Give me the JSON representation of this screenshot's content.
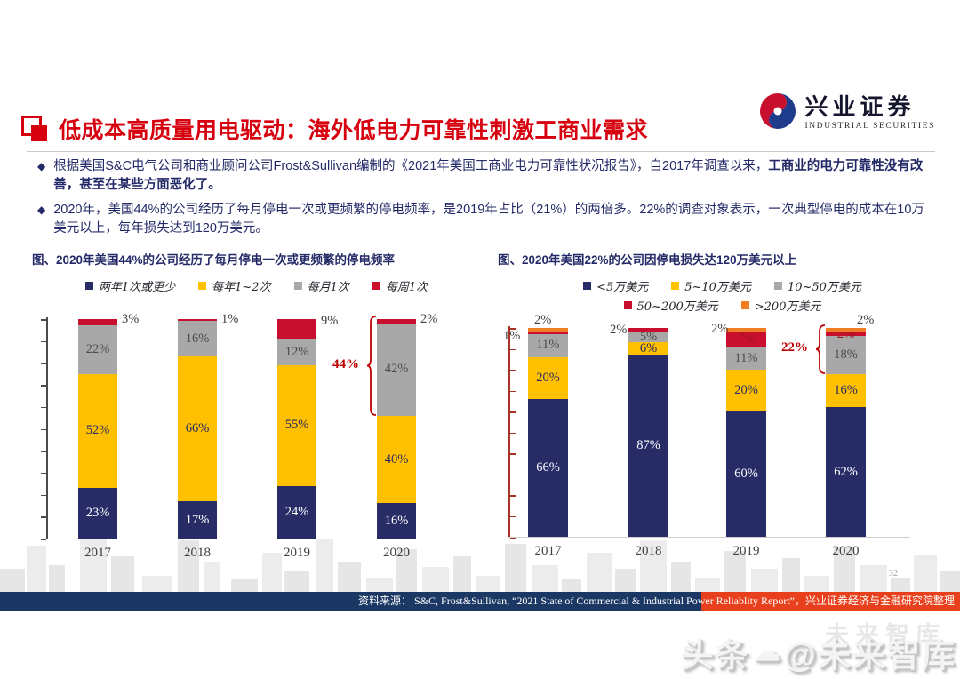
{
  "header": {
    "title": "低成本高质量用电驱动：海外低电力可靠性刺激工商业需求",
    "logo_cn": "兴业证券",
    "logo_en": "INDUSTRIAL SECURITIES"
  },
  "bullet_marker": "◆",
  "bullets": [
    {
      "pre": "根据美国S&C电气公司和商业顾问公司Frost&Sullivan编制的《2021年美国工商业电力可靠性状况报告》，自2017年调查以来，",
      "bold": "工商业的电力可靠性没有改善，甚至在某些方面恶化了。"
    },
    {
      "pre": "2020年，美国44%的公司经历了每月停电一次或更频繁的停电频率，是2019年占比（21%）的两倍多。22%的调查对象表示，一次典型停电的成本在10万美元以上，每年损失达到120万美元。",
      "bold": ""
    }
  ],
  "chart_data": [
    {
      "type": "bar",
      "subtype": "stacked",
      "title": "图、2020年美国44%的公司经历了每月停电一次或更频繁的停电频率",
      "categories": [
        "2017",
        "2018",
        "2019",
        "2020"
      ],
      "ylim": [
        0,
        100
      ],
      "unit": "%",
      "grid": false,
      "legend_position": "top",
      "legend_rows": [
        [
          0,
          1,
          2,
          3
        ]
      ],
      "series": [
        {
          "name": "两年1次或更少",
          "color": "#272C67",
          "label_color": "#FFFFFF",
          "values": [
            23,
            17,
            24,
            16
          ],
          "labels": [
            "23%",
            "17%",
            "24%",
            "16%"
          ]
        },
        {
          "name": "每年1~2次",
          "color": "#FFC000",
          "label_color": "#262A63",
          "values": [
            52,
            66,
            55,
            40
          ],
          "labels": [
            "52%",
            "66%",
            "55%",
            "40%"
          ]
        },
        {
          "name": "每月1次",
          "color": "#A8A8A8",
          "label_color": "#4D4D4D",
          "values": [
            22,
            16,
            12,
            42
          ],
          "labels": [
            "22%",
            "16%",
            "12%",
            "42%"
          ]
        },
        {
          "name": "每周1次",
          "color": "#C8102E",
          "label_color": "#A31220",
          "values": [
            3,
            1,
            9,
            2
          ],
          "labels": [
            "",
            "",
            "",
            ""
          ]
        }
      ],
      "outside_labels": [
        {
          "text": "3%",
          "x": 101,
          "y": -8
        },
        {
          "text": "1%",
          "x": 213,
          "y": -8
        },
        {
          "text": "9%",
          "x": 325,
          "y": -6
        },
        {
          "text": "2%",
          "x": 437,
          "y": -8
        }
      ],
      "brace": {
        "text": "44%",
        "bar": 3,
        "from_series": 2
      }
    },
    {
      "type": "bar",
      "subtype": "stacked",
      "title": "图、2020年美国22%的公司因停电损失达120万美元以上",
      "categories": [
        "2017",
        "2018",
        "2019",
        "2020"
      ],
      "ylim": [
        0,
        100
      ],
      "unit": "%",
      "grid": false,
      "legend_position": "top",
      "legend_rows": [
        [
          0,
          1,
          2
        ],
        [
          3,
          4
        ]
      ],
      "series": [
        {
          "name": "<5万美元",
          "color": "#272C67",
          "label_color": "#FFFFFF",
          "values": [
            66,
            87,
            60,
            62
          ],
          "labels": [
            "66%",
            "87%",
            "60%",
            "62%"
          ]
        },
        {
          "name": "5~10万美元",
          "color": "#FFC000",
          "label_color": "#262A63",
          "values": [
            20,
            6,
            20,
            16
          ],
          "labels": [
            "20%",
            "6%",
            "20%",
            "16%"
          ]
        },
        {
          "name": "10~50万美元",
          "color": "#A8A8A8",
          "label_color": "#4D4D4D",
          "values": [
            11,
            5,
            11,
            18
          ],
          "labels": [
            "11%",
            "5%",
            "11%",
            "18%"
          ]
        },
        {
          "name": "50~200万美元",
          "color": "#C8102E",
          "label_color": "#A31220",
          "values": [
            1,
            2,
            7,
            2
          ],
          "labels": [
            "",
            "",
            "7%",
            "2%"
          ]
        },
        {
          "name": ">200万美元",
          "color": "#EE7D23",
          "label_color": "#A34A00",
          "values": [
            2,
            0,
            2,
            2
          ],
          "labels": [
            "",
            "",
            "",
            ""
          ]
        }
      ],
      "outside_labels": [
        {
          "text": "2%",
          "x": 41,
          "y": -17
        },
        {
          "text": "1%",
          "x": 6,
          "y": 1
        },
        {
          "text": "2%",
          "x": 126,
          "y": -6
        },
        {
          "text": "2%",
          "x": 240,
          "y": -7
        },
        {
          "text": "2%",
          "x": 404,
          "y": -17
        }
      ],
      "brace": {
        "text": "22%",
        "bar": 3,
        "from_series": 2
      }
    }
  ],
  "footer": {
    "source": "资料来源：  S&C, Frost&Sullivan, “2021 State of Commercial & Industrial Power Reliablity Report”，兴业证券经济与金融研究院整理",
    "page_number": "32"
  },
  "watermark": {
    "part1": "头条",
    "cloud": "☁",
    "part2": "@未来智库",
    "ghost": "未来智库"
  }
}
